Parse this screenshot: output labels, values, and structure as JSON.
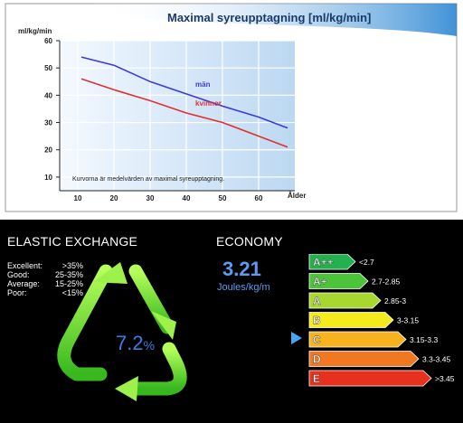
{
  "chart_data": {
    "type": "line",
    "title": "Maximal syreupptagning [ml/kg/min]",
    "ylabel": "ml/kg/min",
    "xlabel": "Ålder",
    "x_ticks": [
      10,
      20,
      30,
      40,
      50,
      60
    ],
    "y_ticks": [
      10,
      20,
      30,
      40,
      50,
      60
    ],
    "xlim": [
      5,
      70
    ],
    "ylim": [
      5,
      60
    ],
    "grid": true,
    "note": "Kurvorna är medelvärden av maximal syreupptagning.",
    "series": [
      {
        "name": "män",
        "color": "#3b3bdc",
        "x": [
          11,
          20,
          30,
          40,
          50,
          60,
          68
        ],
        "y": [
          54,
          51,
          45,
          40.5,
          36,
          32,
          28
        ]
      },
      {
        "name": "kvinnor",
        "color": "#e03030",
        "x": [
          11,
          20,
          30,
          40,
          50,
          60,
          68
        ],
        "y": [
          46,
          42,
          38,
          33.5,
          30,
          25,
          21
        ]
      }
    ]
  },
  "elastic": {
    "title": "ELASTIC EXCHANGE",
    "stats": [
      {
        "label": "Excellent:",
        "value": ">35%"
      },
      {
        "label": "Good:",
        "value": "25-35%"
      },
      {
        "label": "Average:",
        "value": "15-25%"
      },
      {
        "label": "Poor:",
        "value": "<15%"
      }
    ],
    "value": "7.2",
    "unit": "%",
    "icon": "recycle-triangle-icon"
  },
  "economy": {
    "title": "ECONOMY",
    "value": "3.21",
    "unit": "Joules/kg/m",
    "selected": "C",
    "bands": [
      {
        "grade": "A++",
        "range": "<2.7",
        "color": "#22b14c"
      },
      {
        "grade": "A+",
        "range": "2.7-2.85",
        "color": "#4cc43a"
      },
      {
        "grade": "A",
        "range": "2.85-3",
        "color": "#a8d830"
      },
      {
        "grade": "B",
        "range": "3-3.15",
        "color": "#f4ea1c"
      },
      {
        "grade": "C",
        "range": "3.15-3.3",
        "color": "#f7b21e"
      },
      {
        "grade": "D",
        "range": "3.3-3.45",
        "color": "#f07820"
      },
      {
        "grade": "E",
        "range": ">3.45",
        "color": "#e8301e"
      }
    ]
  }
}
